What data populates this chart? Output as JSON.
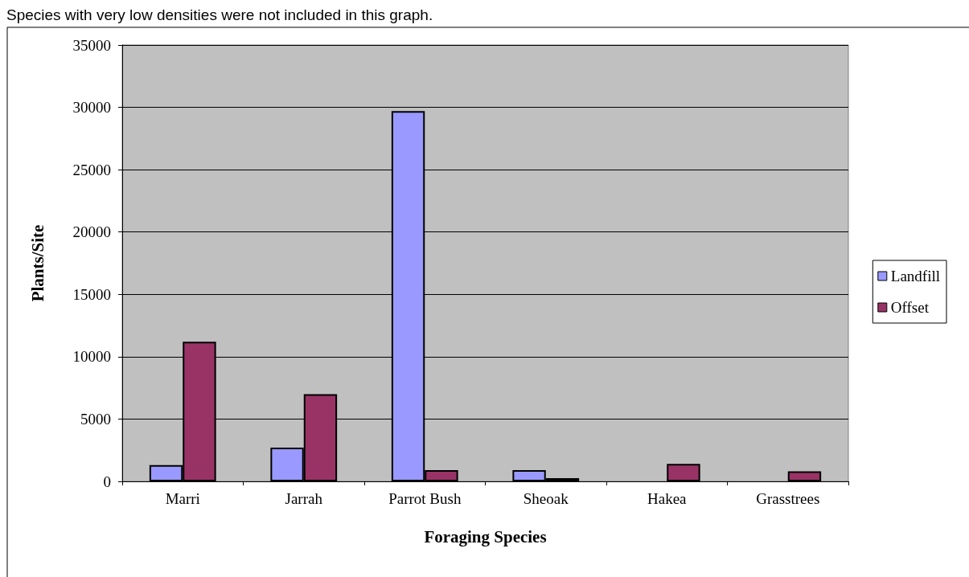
{
  "chart_data": {
    "type": "bar",
    "annotations": [
      "Species with very low densities were not included in this graph."
    ],
    "xlabel": "Foraging Species",
    "ylabel": "Plants/Site",
    "categories": [
      "Marri",
      "Jarrah",
      "Parrot Bush",
      "Sheoak",
      "Hakea",
      "Grasstrees"
    ],
    "series": [
      {
        "name": "Landfill",
        "color": "#9999ff",
        "values": [
          1300,
          2700,
          29700,
          900,
          null,
          null
        ]
      },
      {
        "name": "Offset",
        "color": "#993366",
        "values": [
          11200,
          7000,
          900,
          250,
          1400,
          800
        ]
      }
    ],
    "ylim": [
      0,
      35000
    ],
    "yticks": [
      0,
      5000,
      10000,
      15000,
      20000,
      25000,
      30000,
      35000
    ],
    "grid": "y",
    "legend": "right"
  }
}
